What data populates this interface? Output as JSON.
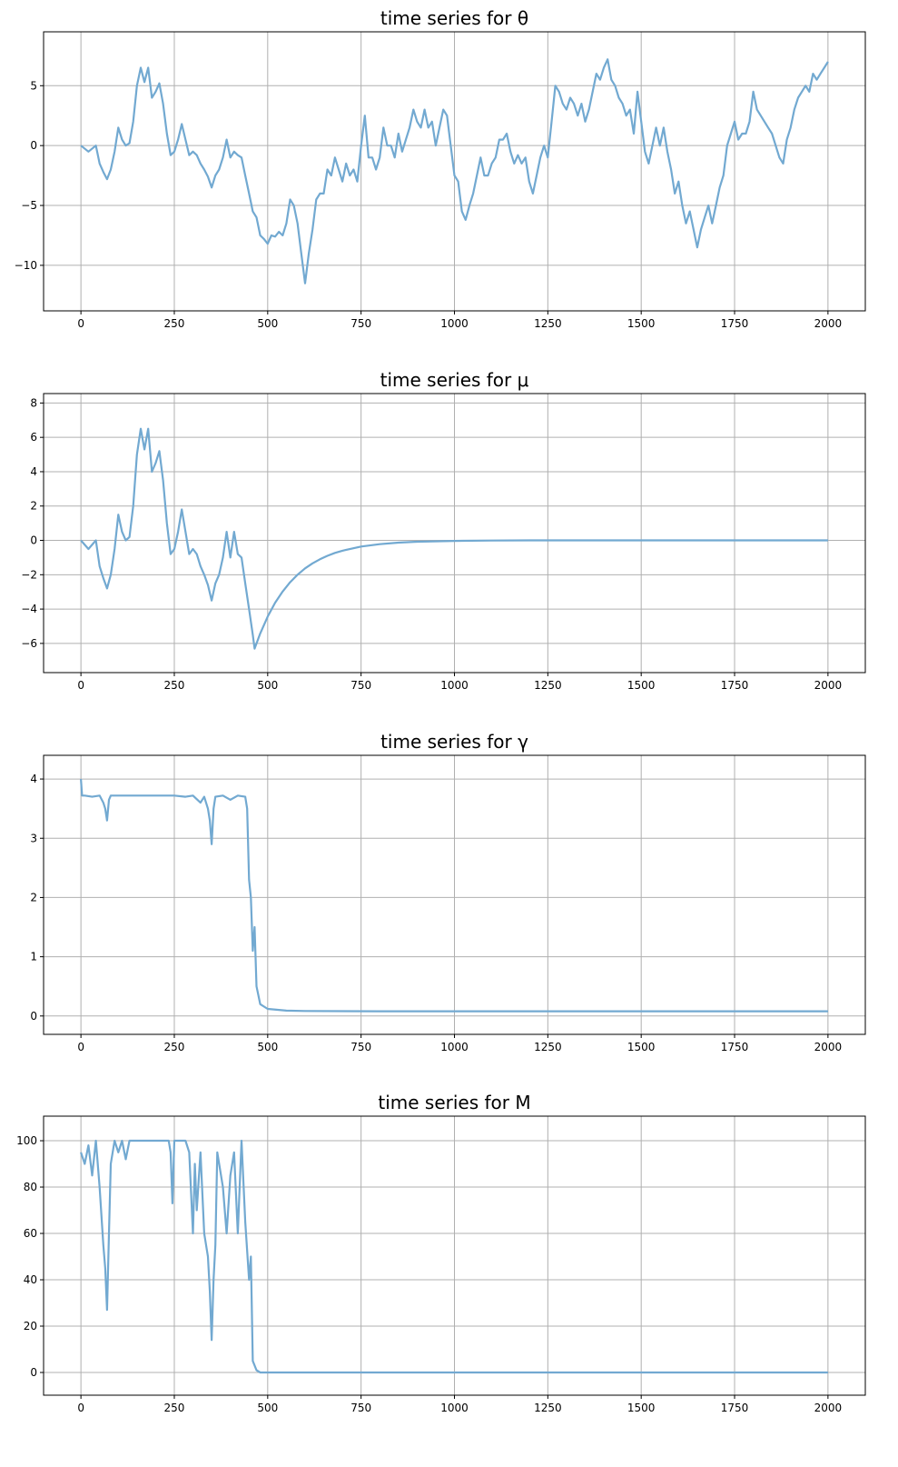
{
  "chart_data": [
    {
      "type": "line",
      "title": "time series for θ",
      "xlim": [
        -100,
        2100
      ],
      "ylim": [
        -13.8,
        9.5
      ],
      "xticks": [
        0,
        250,
        500,
        750,
        1000,
        1250,
        1500,
        1750,
        2000
      ],
      "yticks": [
        5,
        0,
        -5,
        -10
      ],
      "ytick_labels": [
        "5",
        "0",
        "−5",
        "−10"
      ],
      "grid": true,
      "color": "#72a9d1",
      "x": [
        0,
        20,
        40,
        50,
        60,
        70,
        80,
        90,
        100,
        110,
        120,
        130,
        140,
        150,
        160,
        170,
        180,
        190,
        200,
        210,
        220,
        230,
        240,
        250,
        260,
        270,
        280,
        290,
        300,
        310,
        320,
        330,
        340,
        350,
        360,
        370,
        380,
        390,
        400,
        410,
        420,
        430,
        440,
        450,
        460,
        470,
        480,
        490,
        500,
        510,
        520,
        530,
        540,
        550,
        560,
        570,
        580,
        590,
        600,
        610,
        620,
        630,
        640,
        650,
        660,
        670,
        680,
        690,
        700,
        710,
        720,
        730,
        740,
        750,
        760,
        770,
        780,
        790,
        800,
        810,
        820,
        830,
        840,
        850,
        860,
        870,
        880,
        890,
        900,
        910,
        920,
        930,
        940,
        950,
        960,
        970,
        980,
        990,
        1000,
        1010,
        1020,
        1030,
        1040,
        1050,
        1060,
        1070,
        1080,
        1090,
        1100,
        1110,
        1120,
        1130,
        1140,
        1150,
        1160,
        1170,
        1180,
        1190,
        1200,
        1210,
        1220,
        1230,
        1240,
        1250,
        1260,
        1270,
        1280,
        1290,
        1300,
        1310,
        1320,
        1330,
        1340,
        1350,
        1360,
        1370,
        1380,
        1390,
        1400,
        1410,
        1420,
        1430,
        1440,
        1450,
        1460,
        1470,
        1480,
        1490,
        1500,
        1510,
        1520,
        1530,
        1540,
        1550,
        1560,
        1570,
        1580,
        1590,
        1600,
        1610,
        1620,
        1630,
        1640,
        1650,
        1660,
        1670,
        1680,
        1690,
        1700,
        1710,
        1720,
        1730,
        1740,
        1750,
        1760,
        1770,
        1780,
        1790,
        1800,
        1810,
        1820,
        1830,
        1840,
        1850,
        1860,
        1870,
        1880,
        1890,
        1900,
        1910,
        1920,
        1930,
        1940,
        1950,
        1960,
        1970,
        1980,
        1990,
        2000
      ],
      "y": [
        0,
        -0.5,
        0,
        -1.5,
        -2.2,
        -2.8,
        -2,
        -0.5,
        1.5,
        0.5,
        0,
        0.2,
        2,
        5,
        6.5,
        5.3,
        6.5,
        4,
        4.5,
        5.2,
        3.5,
        1,
        -0.8,
        -0.5,
        0.5,
        1.8,
        0.5,
        -0.8,
        -0.5,
        -0.8,
        -1.5,
        -2,
        -2.6,
        -3.5,
        -2.5,
        -2,
        -1,
        0.5,
        -1,
        -0.5,
        -0.8,
        -1,
        -2.5,
        -4,
        -5.5,
        -6,
        -7.5,
        -7.8,
        -8.2,
        -7.5,
        -7.6,
        -7.2,
        -7.5,
        -6.5,
        -4.5,
        -5,
        -6.5,
        -9,
        -11.5,
        -9,
        -7,
        -4.5,
        -4,
        -4,
        -2,
        -2.5,
        -1,
        -2,
        -3,
        -1.5,
        -2.5,
        -2,
        -3,
        0,
        2.5,
        -1,
        -1,
        -2,
        -1,
        1.5,
        0,
        0,
        -1,
        1,
        -0.5,
        0.5,
        1.5,
        3,
        2,
        1.5,
        3,
        1.5,
        2,
        0,
        1.5,
        3,
        2.5,
        0,
        -2.5,
        -3,
        -5.5,
        -6.2,
        -5,
        -4,
        -2.5,
        -1,
        -2.5,
        -2.5,
        -1.5,
        -1,
        0.5,
        0.5,
        1,
        -0.5,
        -1.5,
        -0.8,
        -1.5,
        -1,
        -3,
        -4,
        -2.5,
        -1,
        0,
        -1,
        2,
        5,
        4.5,
        3.5,
        3,
        4,
        3.5,
        2.5,
        3.5,
        2,
        3,
        4.5,
        6,
        5.5,
        6.5,
        7.2,
        5.5,
        5,
        4,
        3.5,
        2.5,
        3,
        1,
        4.5,
        2,
        -0.5,
        -1.5,
        0,
        1.5,
        0,
        1.5,
        -0.5,
        -2,
        -4,
        -3,
        -5,
        -6.5,
        -5.5,
        -7,
        -8.5,
        -7,
        -6,
        -5,
        -6.5,
        -5,
        -3.5,
        -2.5,
        0,
        1,
        2,
        0.5,
        1,
        1,
        2,
        4.5,
        3,
        2.5,
        2,
        1.5,
        1,
        0,
        -1,
        -1.5,
        0.5,
        1.5,
        3,
        4,
        4.5,
        5,
        4.5,
        6,
        5.5,
        6,
        6.5,
        7
      ]
    },
    {
      "type": "line",
      "title": "time series for μ",
      "xlim": [
        -100,
        2100
      ],
      "ylim": [
        -7.7,
        8.55
      ],
      "xticks": [
        0,
        250,
        500,
        750,
        1000,
        1250,
        1500,
        1750,
        2000
      ],
      "yticks": [
        8,
        6,
        4,
        2,
        0,
        -2,
        -4,
        -6
      ],
      "ytick_labels": [
        "8",
        "6",
        "4",
        "2",
        "0",
        "−2",
        "−4",
        "−6"
      ],
      "grid": true,
      "color": "#72a9d1",
      "x": [
        0,
        20,
        40,
        50,
        60,
        70,
        80,
        90,
        100,
        110,
        120,
        130,
        140,
        150,
        160,
        170,
        180,
        190,
        200,
        210,
        220,
        230,
        240,
        250,
        260,
        270,
        280,
        290,
        300,
        310,
        320,
        330,
        340,
        350,
        360,
        370,
        380,
        390,
        400,
        410,
        420,
        430,
        440,
        450,
        460,
        465,
        480,
        500,
        520,
        540,
        560,
        580,
        600,
        620,
        640,
        660,
        680,
        700,
        750,
        800,
        850,
        900,
        1000,
        1100,
        1200,
        1500,
        2000
      ],
      "y": [
        0,
        -0.5,
        0,
        -1.5,
        -2.2,
        -2.8,
        -2,
        -0.5,
        1.5,
        0.5,
        0,
        0.2,
        2,
        5,
        6.5,
        5.3,
        6.5,
        4,
        4.5,
        5.2,
        3.5,
        1,
        -0.8,
        -0.5,
        0.5,
        1.8,
        0.5,
        -0.8,
        -0.5,
        -0.8,
        -1.5,
        -2,
        -2.6,
        -3.5,
        -2.5,
        -2,
        -1,
        0.5,
        -1,
        0.5,
        -0.8,
        -1,
        -2.5,
        -4,
        -5.5,
        -6.3,
        -5.42,
        -4.44,
        -3.63,
        -2.98,
        -2.44,
        -2.0,
        -1.63,
        -1.34,
        -1.1,
        -0.9,
        -0.73,
        -0.6,
        -0.36,
        -0.22,
        -0.13,
        -0.08,
        -0.03,
        -0.01,
        0,
        0,
        0
      ]
    },
    {
      "type": "line",
      "title": "time series for γ",
      "xlim": [
        -100,
        2100
      ],
      "ylim": [
        -0.31,
        4.4
      ],
      "xticks": [
        0,
        250,
        500,
        750,
        1000,
        1250,
        1500,
        1750,
        2000
      ],
      "yticks": [
        4,
        3,
        2,
        1,
        0
      ],
      "ytick_labels": [
        "4",
        "3",
        "2",
        "1",
        "0"
      ],
      "grid": true,
      "color": "#72a9d1",
      "x": [
        0,
        3,
        10,
        30,
        50,
        60,
        65,
        70,
        75,
        80,
        100,
        150,
        200,
        250,
        280,
        300,
        320,
        330,
        340,
        345,
        350,
        355,
        360,
        380,
        400,
        420,
        440,
        445,
        450,
        455,
        460,
        465,
        470,
        480,
        500,
        550,
        600,
        800,
        2000
      ],
      "y": [
        4.0,
        3.72,
        3.72,
        3.7,
        3.72,
        3.6,
        3.5,
        3.3,
        3.65,
        3.72,
        3.72,
        3.72,
        3.72,
        3.72,
        3.7,
        3.72,
        3.6,
        3.7,
        3.5,
        3.3,
        2.9,
        3.5,
        3.7,
        3.72,
        3.65,
        3.72,
        3.7,
        3.5,
        2.3,
        2.0,
        1.1,
        1.5,
        0.5,
        0.2,
        0.12,
        0.09,
        0.085,
        0.08,
        0.08
      ]
    },
    {
      "type": "line",
      "title": "time series for M",
      "xlim": [
        -100,
        2100
      ],
      "ylim": [
        -9.8,
        110.6
      ],
      "xticks": [
        0,
        250,
        500,
        750,
        1000,
        1250,
        1500,
        1750,
        2000
      ],
      "yticks": [
        100,
        80,
        60,
        40,
        20,
        0
      ],
      "ytick_labels": [
        "100",
        "80",
        "60",
        "40",
        "20",
        "0"
      ],
      "grid": true,
      "color": "#72a9d1",
      "x": [
        0,
        10,
        20,
        30,
        40,
        50,
        60,
        65,
        70,
        75,
        80,
        90,
        100,
        110,
        120,
        130,
        200,
        235,
        240,
        245,
        250,
        280,
        290,
        300,
        305,
        310,
        320,
        330,
        340,
        345,
        350,
        355,
        360,
        365,
        380,
        390,
        400,
        410,
        420,
        430,
        440,
        450,
        455,
        460,
        470,
        480,
        2000
      ],
      "y": [
        95,
        90,
        98,
        85,
        100,
        80,
        55,
        45,
        27,
        60,
        90,
        100,
        95,
        100,
        92,
        100,
        100,
        100,
        95,
        73,
        100,
        100,
        95,
        60,
        90,
        70,
        95,
        60,
        50,
        35,
        14,
        40,
        55,
        95,
        80,
        60,
        85,
        95,
        60,
        100,
        65,
        40,
        50,
        5,
        1,
        0,
        0
      ]
    }
  ]
}
